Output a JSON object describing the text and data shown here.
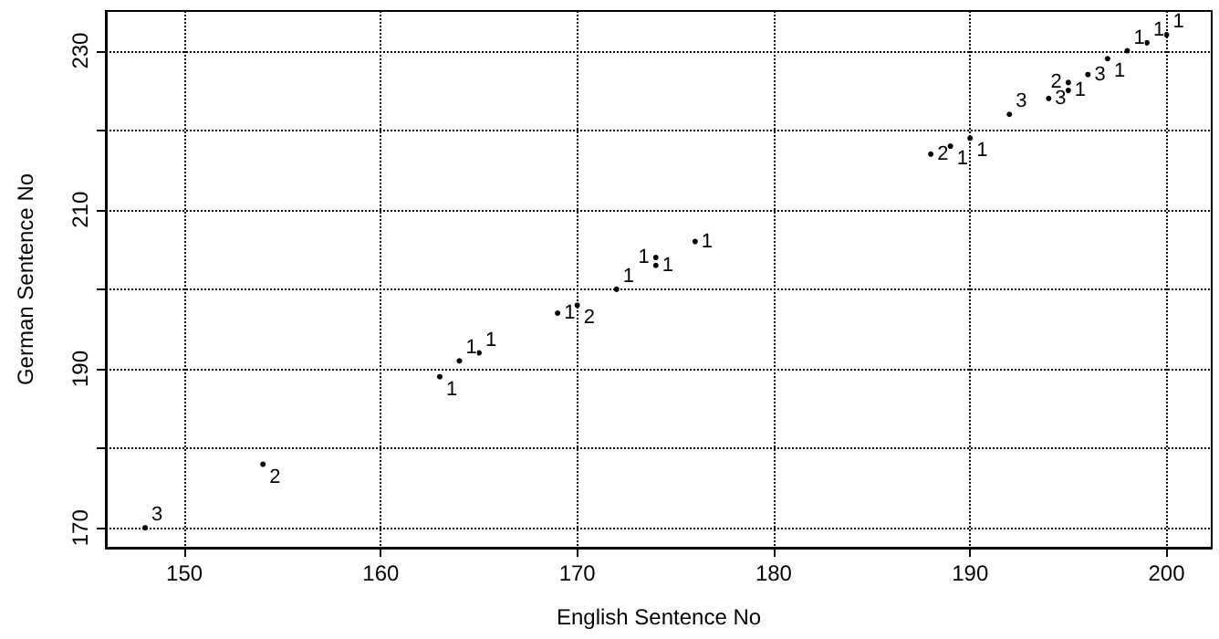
{
  "chart_data": {
    "type": "scatter",
    "xlabel": "English Sentence No",
    "ylabel": "German Sentence No",
    "series": [
      {
        "name": "1",
        "color": "#000000",
        "x": [
          163,
          164,
          165,
          169,
          172,
          174,
          174,
          176,
          189,
          190,
          195,
          197,
          198,
          199,
          200
        ],
        "values": [
          189,
          191,
          192,
          197,
          200,
          204,
          203,
          206,
          218,
          219,
          225,
          229,
          230,
          231,
          232
        ]
      },
      {
        "name": "2",
        "color": "#000000",
        "x": [
          154,
          170,
          188,
          195
        ],
        "values": [
          178,
          198,
          217,
          226
        ]
      },
      {
        "name": "3",
        "color": "#000000",
        "x": [
          148,
          192,
          194,
          196
        ],
        "values": [
          170,
          222,
          224,
          227
        ]
      }
    ],
    "grid": true,
    "marker": "circle",
    "xlim": [
      146,
      202.3
    ],
    "xticks": [
      150,
      160,
      170,
      180,
      190,
      200
    ],
    "ylim": [
      167.5,
      235
    ],
    "yticks": [
      170,
      {
        "value": 180,
        "label": null
      },
      190,
      {
        "value": 200,
        "label": null
      },
      210,
      {
        "value": 220,
        "label": null
      },
      230
    ]
  }
}
